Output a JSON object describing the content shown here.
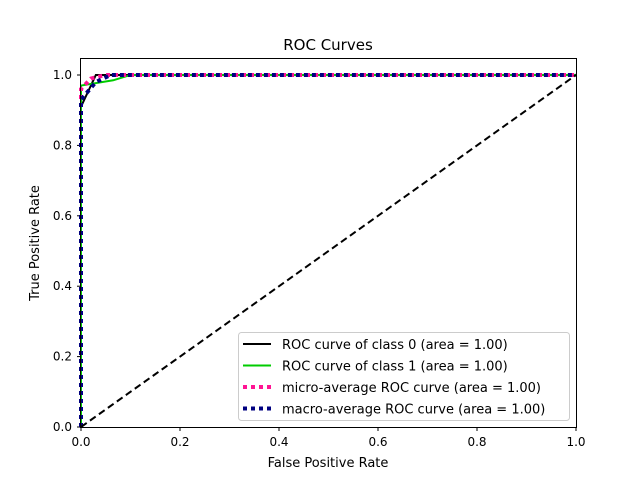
{
  "chart_data": {
    "type": "line",
    "title": "ROC Curves",
    "xlabel": "False Positive Rate",
    "ylabel": "True Positive Rate",
    "xlim": [
      0,
      1
    ],
    "ylim": [
      0,
      1.05
    ],
    "xticks": [
      "0.0",
      "0.2",
      "0.4",
      "0.6",
      "0.8",
      "1.0"
    ],
    "yticks": [
      "0.0",
      "0.2",
      "0.4",
      "0.6",
      "0.8",
      "1.0"
    ],
    "legend_position": "lower-right",
    "series": [
      {
        "name": "ROC curve of class 0 (area = 1.00)",
        "color": "#000000",
        "style": "solid",
        "x": [
          0,
          0,
          0.03,
          1
        ],
        "y": [
          0,
          0.91,
          1.0,
          1.0
        ]
      },
      {
        "name": "ROC curve of class 1 (area = 1.00)",
        "color": "#00cc00",
        "style": "solid",
        "x": [
          0,
          0,
          0.065,
          0.1,
          1
        ],
        "y": [
          0,
          0.97,
          0.985,
          1.0,
          1.0
        ]
      },
      {
        "name": "micro-average ROC curve (area = 1.00)",
        "color": "#ff1493",
        "style": "dotted",
        "x": [
          0,
          0,
          0.02,
          0.05,
          1
        ],
        "y": [
          0,
          0.96,
          0.99,
          1.0,
          1.0
        ]
      },
      {
        "name": "macro-average ROC curve (area = 1.00)",
        "color": "#000080",
        "style": "dotted",
        "x": [
          0,
          0,
          0.03,
          0.06,
          1
        ],
        "y": [
          0,
          0.93,
          0.98,
          1.0,
          1.0
        ]
      },
      {
        "name": "",
        "color": "#000000",
        "style": "dashed",
        "x": [
          0,
          1
        ],
        "y": [
          0,
          1
        ]
      }
    ]
  }
}
